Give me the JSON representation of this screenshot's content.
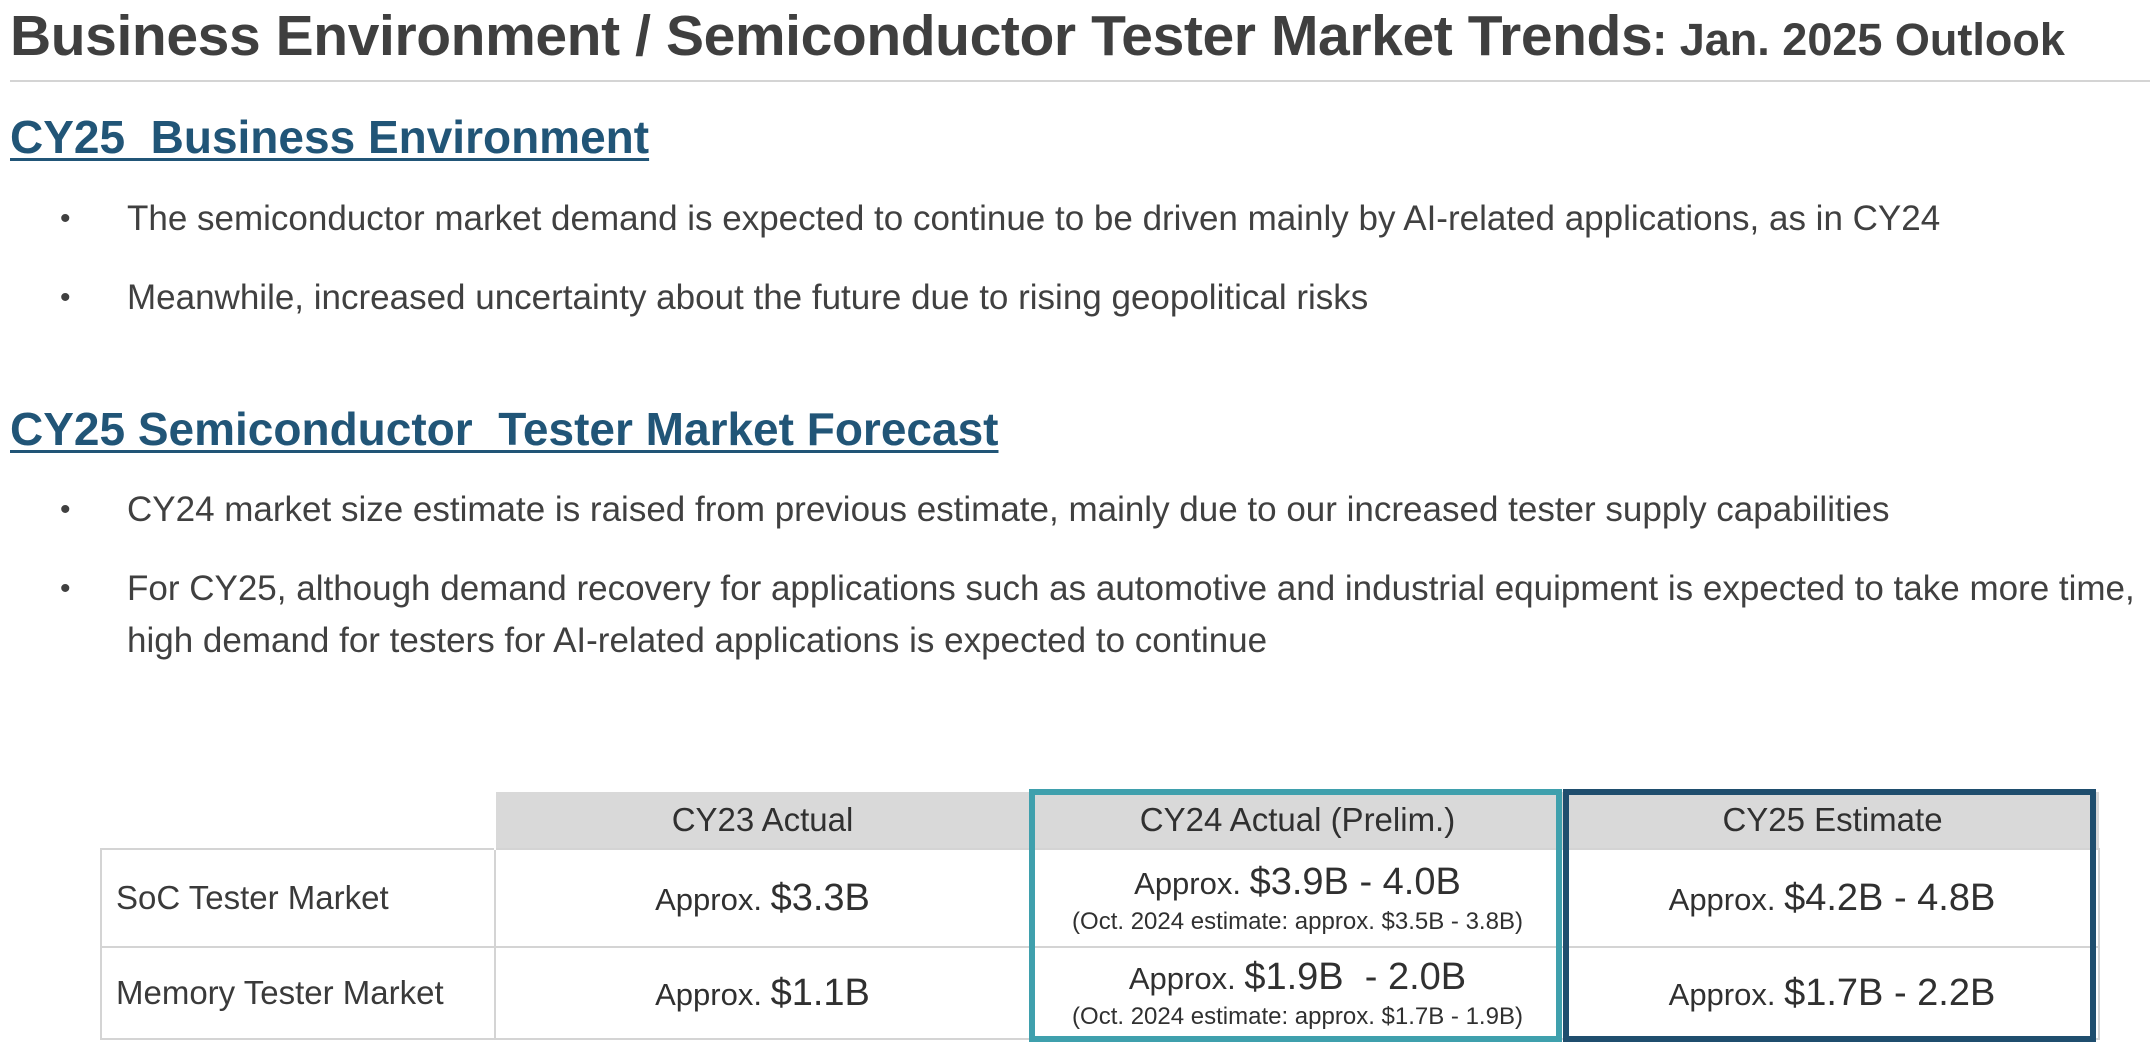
{
  "title": {
    "main": "Business Environment / Semiconductor Tester Market Trends",
    "suffix": ": Jan. 2025 Outlook"
  },
  "section_business": {
    "heading": "CY25  Business Environment",
    "bullets": [
      "The semiconductor market demand is expected to continue to be driven mainly by AI-related applications, as in CY24",
      "Meanwhile, increased uncertainty about the future due to rising geopolitical risks"
    ]
  },
  "section_forecast": {
    "heading": "CY25 Semiconductor  Tester Market Forecast",
    "bullets": [
      "CY24 market size estimate is raised from previous estimate, mainly due to our increased tester supply capabilities",
      "For CY25, although demand recovery for applications such as automotive and industrial equipment is expected to take more time, high demand for testers for AI-related applications is expected to continue"
    ]
  },
  "bullet_glyph": "•",
  "table": {
    "columns": [
      "CY23 Actual",
      "CY24 Actual (Prelim.)",
      "CY25 Estimate"
    ],
    "rows": [
      {
        "label": "SoC Tester Market",
        "cy23": {
          "prefix": "Approx. ",
          "value": "$3.3B"
        },
        "cy24": {
          "prefix": "Approx. ",
          "value": "$3.9B - 4.0B",
          "note": "(Oct. 2024 estimate: approx. $3.5B - 3.8B)"
        },
        "cy25": {
          "prefix": "Approx. ",
          "value": "$4.2B - 4.8B"
        }
      },
      {
        "label": "Memory Tester Market",
        "cy23": {
          "prefix": "Approx. ",
          "value": "$1.1B"
        },
        "cy24": {
          "prefix": "Approx. ",
          "value": "$1.9B  - 2.0B",
          "note": "(Oct. 2024 estimate: approx. $1.7B - 1.9B)"
        },
        "cy25": {
          "prefix": "Approx. ",
          "value": "$1.7B - 2.2B"
        }
      }
    ]
  },
  "colors": {
    "heading": "#215577",
    "text": "#404040",
    "header_fill": "#d9d9d9",
    "grid": "#d4d4d4",
    "cy24_frame": "#3fa0ad",
    "cy25_frame": "#1f4e6e"
  }
}
